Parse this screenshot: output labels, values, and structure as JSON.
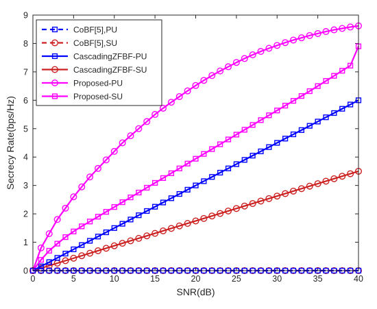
{
  "chart_data": {
    "type": "line",
    "title": "",
    "xlabel": "SNR(dB)",
    "ylabel": "Secrecy Rate(bps/Hz)",
    "xlim": [
      0,
      40
    ],
    "ylim": [
      0,
      9
    ],
    "xticks": [
      0,
      5,
      10,
      15,
      20,
      25,
      30,
      35,
      40
    ],
    "yticks": [
      0,
      1,
      2,
      3,
      4,
      5,
      6,
      7,
      8,
      9
    ],
    "grid": false,
    "legend_position": "top-left",
    "x": [
      0,
      1,
      2,
      3,
      4,
      5,
      6,
      7,
      8,
      9,
      10,
      11,
      12,
      13,
      14,
      15,
      16,
      17,
      18,
      19,
      20,
      21,
      22,
      23,
      24,
      25,
      26,
      27,
      28,
      29,
      30,
      31,
      32,
      33,
      34,
      35,
      36,
      37,
      38,
      39,
      40
    ],
    "series": [
      {
        "name": "CoBF[5],PU",
        "color": "#0000ff",
        "line_style": "dashed",
        "marker": "square",
        "values": [
          0,
          0,
          0,
          0,
          0,
          0,
          0,
          0,
          0,
          0,
          0,
          0,
          0,
          0,
          0,
          0,
          0,
          0,
          0,
          0,
          0,
          0,
          0,
          0,
          0,
          0,
          0,
          0,
          0,
          0,
          0,
          0,
          0,
          0,
          0,
          0,
          0,
          0,
          0,
          0,
          0
        ]
      },
      {
        "name": "CoBF[5],SU",
        "color": "#cc2020",
        "line_style": "dashed",
        "marker": "circle",
        "values": [
          0,
          0,
          0,
          0,
          0,
          0,
          0,
          0,
          0,
          0,
          0,
          0,
          0,
          0,
          0,
          0,
          0,
          0,
          0,
          0,
          0,
          0,
          0,
          0,
          0,
          0,
          0,
          0,
          0,
          0,
          0,
          0,
          0,
          0,
          0,
          0,
          0,
          0,
          0,
          0,
          0
        ]
      },
      {
        "name": "CascadingZFBF-PU",
        "color": "#0000ff",
        "line_style": "solid",
        "marker": "square",
        "values": [
          0,
          0.15,
          0.3,
          0.45,
          0.6,
          0.75,
          0.9,
          1.05,
          1.2,
          1.35,
          1.5,
          1.65,
          1.8,
          1.95,
          2.1,
          2.25,
          2.4,
          2.55,
          2.7,
          2.85,
          3.0,
          3.15,
          3.3,
          3.45,
          3.6,
          3.75,
          3.9,
          4.05,
          4.2,
          4.35,
          4.5,
          4.65,
          4.8,
          4.95,
          5.1,
          5.25,
          5.4,
          5.55,
          5.7,
          5.85,
          6.0
        ]
      },
      {
        "name": "CascadingZFBF-SU",
        "color": "#cc2020",
        "line_style": "solid",
        "marker": "circle",
        "values": [
          0,
          0.0875,
          0.175,
          0.2625,
          0.35,
          0.4375,
          0.525,
          0.6125,
          0.7,
          0.7875,
          0.875,
          0.9625,
          1.05,
          1.1375,
          1.225,
          1.3125,
          1.4,
          1.4875,
          1.575,
          1.6625,
          1.75,
          1.8375,
          1.925,
          2.0125,
          2.1,
          2.1875,
          2.275,
          2.3625,
          2.45,
          2.5375,
          2.625,
          2.7125,
          2.8,
          2.8875,
          2.975,
          3.0625,
          3.15,
          3.2375,
          3.325,
          3.4125,
          3.5
        ]
      },
      {
        "name": "Proposed-PU",
        "color": "#ff00ff",
        "line_style": "solid",
        "marker": "circle",
        "values": [
          0,
          0.8,
          1.3,
          1.8,
          2.2,
          2.6,
          2.95,
          3.3,
          3.6,
          3.9,
          4.2,
          4.5,
          4.75,
          5.0,
          5.25,
          5.5,
          5.72,
          5.93,
          6.13,
          6.33,
          6.52,
          6.7,
          6.87,
          7.03,
          7.18,
          7.33,
          7.47,
          7.6,
          7.72,
          7.83,
          7.93,
          8.03,
          8.12,
          8.2,
          8.28,
          8.35,
          8.42,
          8.48,
          8.53,
          8.58,
          8.62
        ]
      },
      {
        "name": "Proposed-SU",
        "color": "#ff00ff",
        "line_style": "solid",
        "marker": "square",
        "values": [
          0,
          0.38,
          0.7,
          0.95,
          1.18,
          1.38,
          1.56,
          1.73,
          1.9,
          2.07,
          2.24,
          2.41,
          2.58,
          2.75,
          2.92,
          3.09,
          3.26,
          3.43,
          3.6,
          3.77,
          3.94,
          4.11,
          4.28,
          4.45,
          4.62,
          4.79,
          4.96,
          5.13,
          5.3,
          5.47,
          5.64,
          5.81,
          5.98,
          6.15,
          6.32,
          6.5,
          6.68,
          6.86,
          7.04,
          7.22,
          7.9
        ]
      }
    ]
  }
}
